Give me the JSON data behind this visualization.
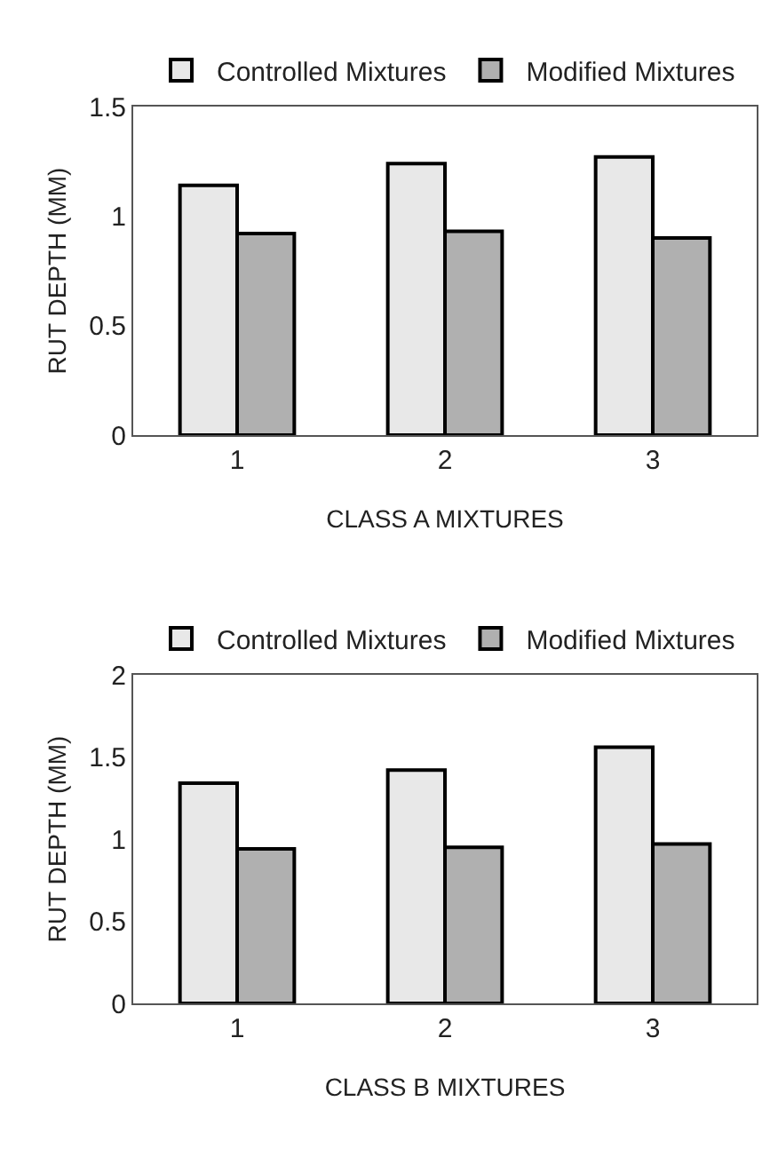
{
  "chart_data": [
    {
      "type": "bar",
      "categories": [
        "1",
        "2",
        "3"
      ],
      "xlabel": "CLASS A MIXTURES",
      "ylabel": "RUT DEPTH (MM)",
      "ylim": [
        0,
        1.5
      ],
      "yticks": [
        0,
        0.5,
        1,
        1.5
      ],
      "grid": false,
      "legend": "top",
      "series": [
        {
          "name": "Controlled Mixtures",
          "color": "#e8e8e8",
          "values": [
            1.14,
            1.24,
            1.27
          ]
        },
        {
          "name": "Modified Mixtures",
          "color": "#b0b0b0",
          "values": [
            0.92,
            0.93,
            0.9
          ]
        }
      ]
    },
    {
      "type": "bar",
      "categories": [
        "1",
        "2",
        "3"
      ],
      "xlabel": "CLASS B MIXTURES",
      "ylabel": "RUT DEPTH (MM)",
      "ylim": [
        0,
        2
      ],
      "yticks": [
        0,
        0.5,
        1,
        1.5,
        2
      ],
      "grid": false,
      "legend": "top",
      "series": [
        {
          "name": "Controlled Mixtures",
          "color": "#e8e8e8",
          "values": [
            1.34,
            1.42,
            1.56
          ]
        },
        {
          "name": "Modified Mixtures",
          "color": "#b0b0b0",
          "values": [
            0.94,
            0.95,
            0.97
          ]
        }
      ]
    }
  ]
}
